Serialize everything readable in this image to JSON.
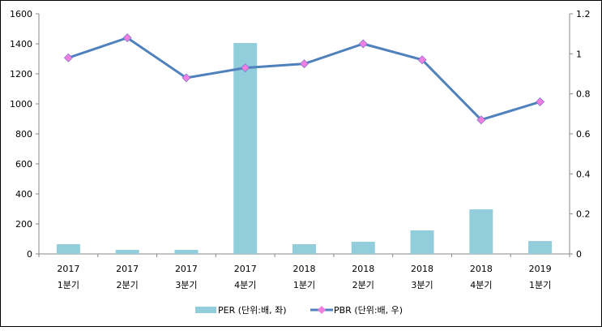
{
  "chart_data": {
    "type": "bar+line",
    "categories": [
      [
        "2017",
        "1분기"
      ],
      [
        "2017",
        "2분기"
      ],
      [
        "2017",
        "3분기"
      ],
      [
        "2017",
        "4분기"
      ],
      [
        "2018",
        "1분기"
      ],
      [
        "2018",
        "2분기"
      ],
      [
        "2018",
        "3분기"
      ],
      [
        "2018",
        "4분기"
      ],
      [
        "2019",
        "1분기"
      ]
    ],
    "series": [
      {
        "name": "PER (단위:배, 좌)",
        "type": "bar",
        "axis": "left",
        "color": "#92CDDC",
        "values": [
          65,
          27,
          27,
          1405,
          65,
          81,
          157,
          297,
          86
        ]
      },
      {
        "name": "PBR (단위:배, 우)",
        "type": "line",
        "axis": "right",
        "color": "#4F81BD",
        "marker_color": "#F07FE0",
        "values": [
          0.98,
          1.08,
          0.88,
          0.93,
          0.95,
          1.05,
          0.97,
          0.67,
          0.76
        ]
      }
    ],
    "left_axis": {
      "ylim": [
        0,
        1600
      ],
      "ticks": [
        "0",
        "200",
        "400",
        "600",
        "800",
        "1000",
        "1200",
        "1400",
        "1600"
      ]
    },
    "right_axis": {
      "ylim": [
        0,
        1.2
      ],
      "ticks": [
        "0",
        "0.2",
        "0.4",
        "0.6",
        "0.8",
        "1",
        "1.2"
      ]
    },
    "legend": "bottom",
    "grid": false
  }
}
